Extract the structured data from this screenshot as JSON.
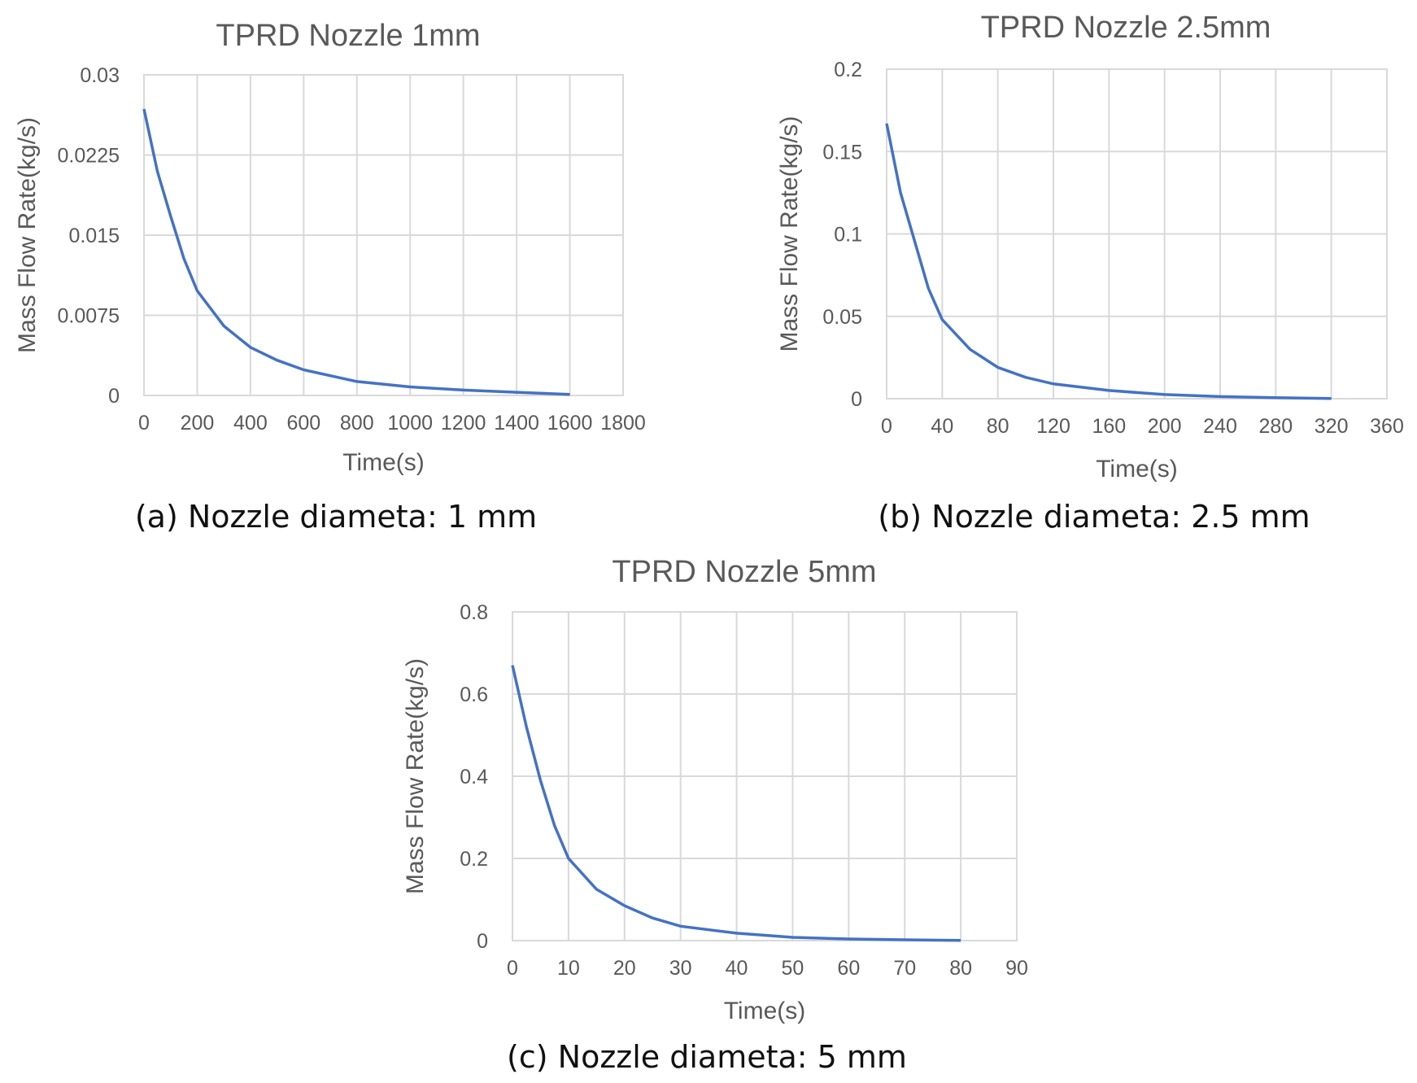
{
  "chart_data": [
    {
      "type": "line",
      "title": "TPRD Nozzle 1mm",
      "caption": "(a) Nozzle diameta: 1 mm",
      "xlabel": "Time(s)",
      "ylabel": "Mass Flow Rate(kg/s)",
      "xlim": [
        0,
        1800
      ],
      "ylim": [
        0,
        0.03
      ],
      "xticks": [
        "0",
        "200",
        "400",
        "600",
        "800",
        "1000",
        "1200",
        "1400",
        "1600",
        "1800"
      ],
      "yticks": [
        "0",
        "0.0075",
        "0.015",
        "0.0225",
        "0.03"
      ],
      "grid": "vertical and horizontal",
      "legend": "none",
      "line_color": "#4472c4",
      "series": [
        {
          "x": [
            0,
            50,
            100,
            150,
            200,
            300,
            400,
            500,
            600,
            800,
            1000,
            1200,
            1400,
            1600
          ],
          "values": [
            0.0268,
            0.021,
            0.0168,
            0.0128,
            0.0098,
            0.0065,
            0.0045,
            0.0033,
            0.0024,
            0.0013,
            0.0008,
            0.0005,
            0.0003,
            0.0001
          ]
        }
      ]
    },
    {
      "type": "line",
      "title": "TPRD Nozzle 2.5mm",
      "caption": "(b) Nozzle diameta: 2.5 mm",
      "xlabel": "Time(s)",
      "ylabel": "Mass Flow Rate(kg/s)",
      "xlim": [
        0,
        360
      ],
      "ylim": [
        0,
        0.2
      ],
      "xticks": [
        "0",
        "40",
        "80",
        "120",
        "160",
        "200",
        "240",
        "280",
        "320",
        "360"
      ],
      "yticks": [
        "0",
        "0.05",
        "0.1",
        "0.15",
        "0.2"
      ],
      "grid": "vertical and horizontal",
      "legend": "none",
      "line_color": "#4472c4",
      "series": [
        {
          "x": [
            0,
            10,
            20,
            30,
            40,
            60,
            80,
            100,
            120,
            160,
            200,
            240,
            280,
            320
          ],
          "values": [
            0.167,
            0.125,
            0.096,
            0.067,
            0.048,
            0.03,
            0.019,
            0.013,
            0.009,
            0.005,
            0.0025,
            0.0013,
            0.0006,
            0.0001
          ]
        }
      ]
    },
    {
      "type": "line",
      "title": "TPRD Nozzle 5mm",
      "caption": "(c) Nozzle diameta: 5 mm",
      "xlabel": "Time(s)",
      "ylabel": "Mass Flow Rate(kg/s)",
      "xlim": [
        0,
        90
      ],
      "ylim": [
        0,
        0.8
      ],
      "xticks": [
        "0",
        "10",
        "20",
        "30",
        "40",
        "50",
        "60",
        "70",
        "80",
        "90"
      ],
      "yticks": [
        "0",
        "0.2",
        "0.4",
        "0.6",
        "0.8"
      ],
      "grid": "vertical and horizontal",
      "legend": "none",
      "line_color": "#4472c4",
      "series": [
        {
          "x": [
            0,
            2.5,
            5,
            7.5,
            10,
            15,
            20,
            25,
            30,
            40,
            50,
            60,
            70,
            80
          ],
          "values": [
            0.67,
            0.52,
            0.39,
            0.28,
            0.2,
            0.125,
            0.085,
            0.055,
            0.035,
            0.018,
            0.008,
            0.004,
            0.002,
            0.0005
          ]
        }
      ]
    }
  ]
}
